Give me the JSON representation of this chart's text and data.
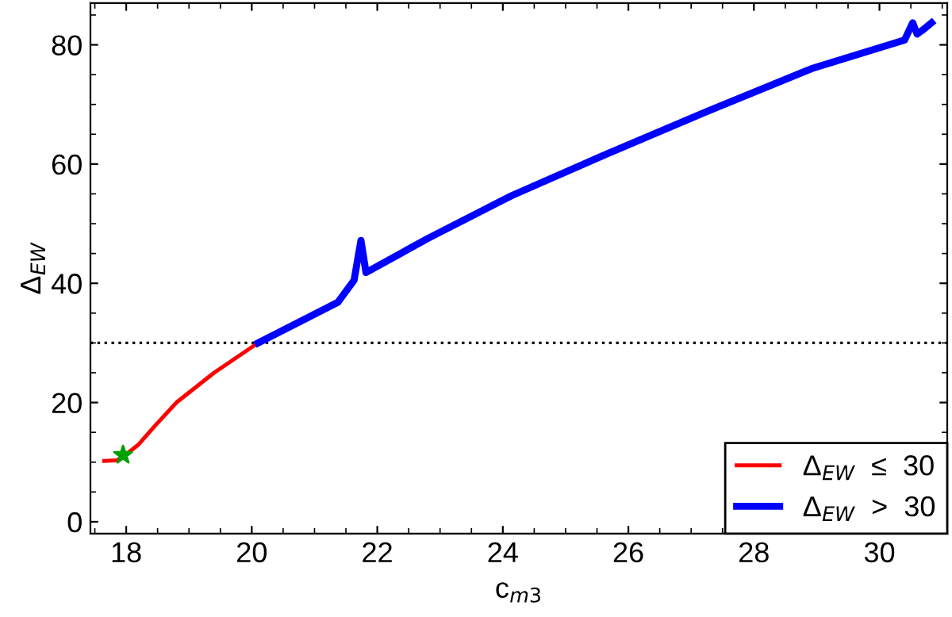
{
  "chart_data": {
    "type": "line",
    "xlabel": "c$_{m3}$",
    "ylabel": "Δ$_{EW}$",
    "xlim": [
      17.43,
      31.08
    ],
    "ylim": [
      -2,
      87
    ],
    "xticks": [
      18,
      20,
      22,
      24,
      26,
      28,
      30
    ],
    "yticks": [
      0,
      20,
      40,
      60,
      80
    ],
    "grid": false,
    "legend": "bottom right",
    "series": [
      {
        "name": "Δ$_{EW}$  ≤  30",
        "color": "#ff0000",
        "x": [
          17.65,
          17.85,
          18.0,
          18.2,
          18.45,
          18.8,
          19.4,
          20.1
        ],
        "values": [
          10.2,
          10.3,
          11.3,
          13,
          16,
          20,
          25,
          30
        ]
      },
      {
        "name": "Δ$_{EW}$  >  30",
        "color": "#0000ff",
        "x": [
          20.1,
          21.37,
          21.63,
          21.74,
          21.82,
          22.8,
          24.14,
          25.57,
          27.25,
          28.92,
          30.4,
          30.53,
          30.6,
          30.68,
          30.83
        ],
        "values": [
          30,
          36.8,
          40.5,
          47.2,
          41.8,
          47.5,
          54.7,
          61.3,
          68.8,
          76,
          80.8,
          83.7,
          81.8,
          82.4,
          83.7
        ]
      },
      {
        "type": "scatter",
        "color": "#00a000",
        "marker": "star",
        "x": [
          17.95
        ],
        "values": [
          11.2
        ]
      }
    ],
    "ref_lines": [
      {
        "axis": "y",
        "value": 30,
        "color": "#000000",
        "line_style": "dotted"
      }
    ]
  }
}
